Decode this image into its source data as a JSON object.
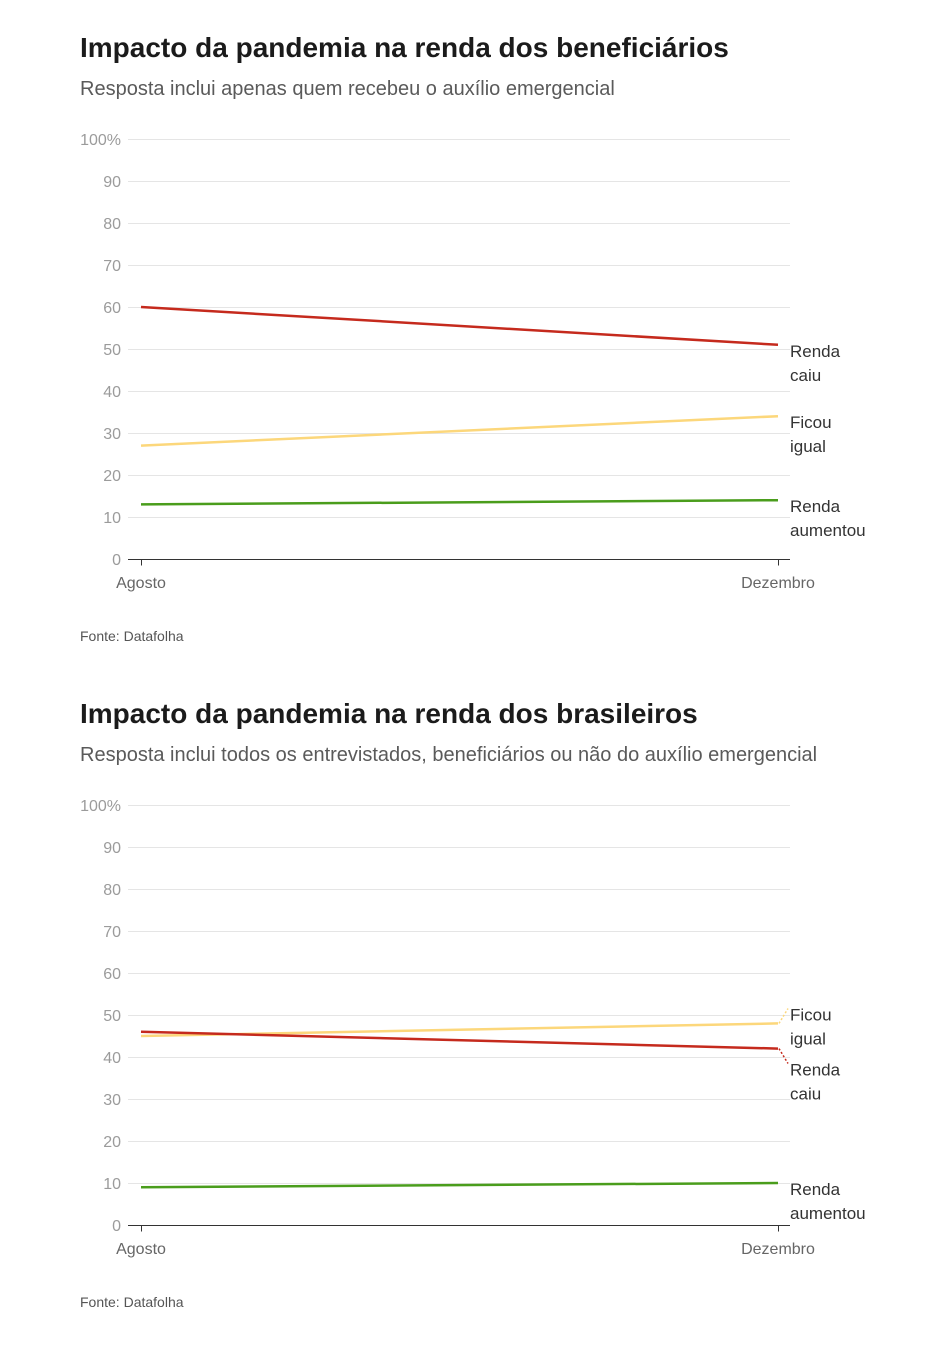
{
  "chart_data": [
    {
      "type": "line",
      "title": "Impacto da pandemia na renda dos beneficiários",
      "subtitle": "Resposta inclui apenas quem recebeu o auxílio emergencial",
      "categories": [
        "Agosto",
        "Dezembro"
      ],
      "ylim": [
        0,
        100
      ],
      "yticks": [
        0,
        10,
        20,
        30,
        40,
        50,
        60,
        70,
        80,
        90,
        100
      ],
      "ytick_labels": [
        "0",
        "10",
        "20",
        "30",
        "40",
        "50",
        "60",
        "70",
        "80",
        "90",
        "100%"
      ],
      "grid": true,
      "legend": "right",
      "series": [
        {
          "name": "Renda caiu",
          "values": [
            60,
            51
          ],
          "color": "#c52a1d"
        },
        {
          "name": "Ficou igual",
          "values": [
            27,
            34
          ],
          "color": "#fcd77b"
        },
        {
          "name": "Renda aumentou",
          "values": [
            13,
            14
          ],
          "color": "#4a9d1c"
        }
      ],
      "source": "Fonte: Datafolha"
    },
    {
      "type": "line",
      "title": "Impacto da pandemia na renda dos brasileiros",
      "subtitle": "Resposta inclui todos os entrevistados, beneficiários ou não do auxílio emergencial",
      "categories": [
        "Agosto",
        "Dezembro"
      ],
      "ylim": [
        0,
        100
      ],
      "yticks": [
        0,
        10,
        20,
        30,
        40,
        50,
        60,
        70,
        80,
        90,
        100
      ],
      "ytick_labels": [
        "0",
        "10",
        "20",
        "30",
        "40",
        "50",
        "60",
        "70",
        "80",
        "90",
        "100%"
      ],
      "grid": true,
      "legend": "right",
      "series": [
        {
          "name": "Ficou igual",
          "values": [
            45,
            48
          ],
          "color": "#fcd77b"
        },
        {
          "name": "Renda caiu",
          "values": [
            46,
            42
          ],
          "color": "#c52a1d"
        },
        {
          "name": "Renda aumentou",
          "values": [
            9,
            10
          ],
          "color": "#4a9d1c"
        }
      ],
      "source": "Fonte: Datafolha"
    }
  ]
}
